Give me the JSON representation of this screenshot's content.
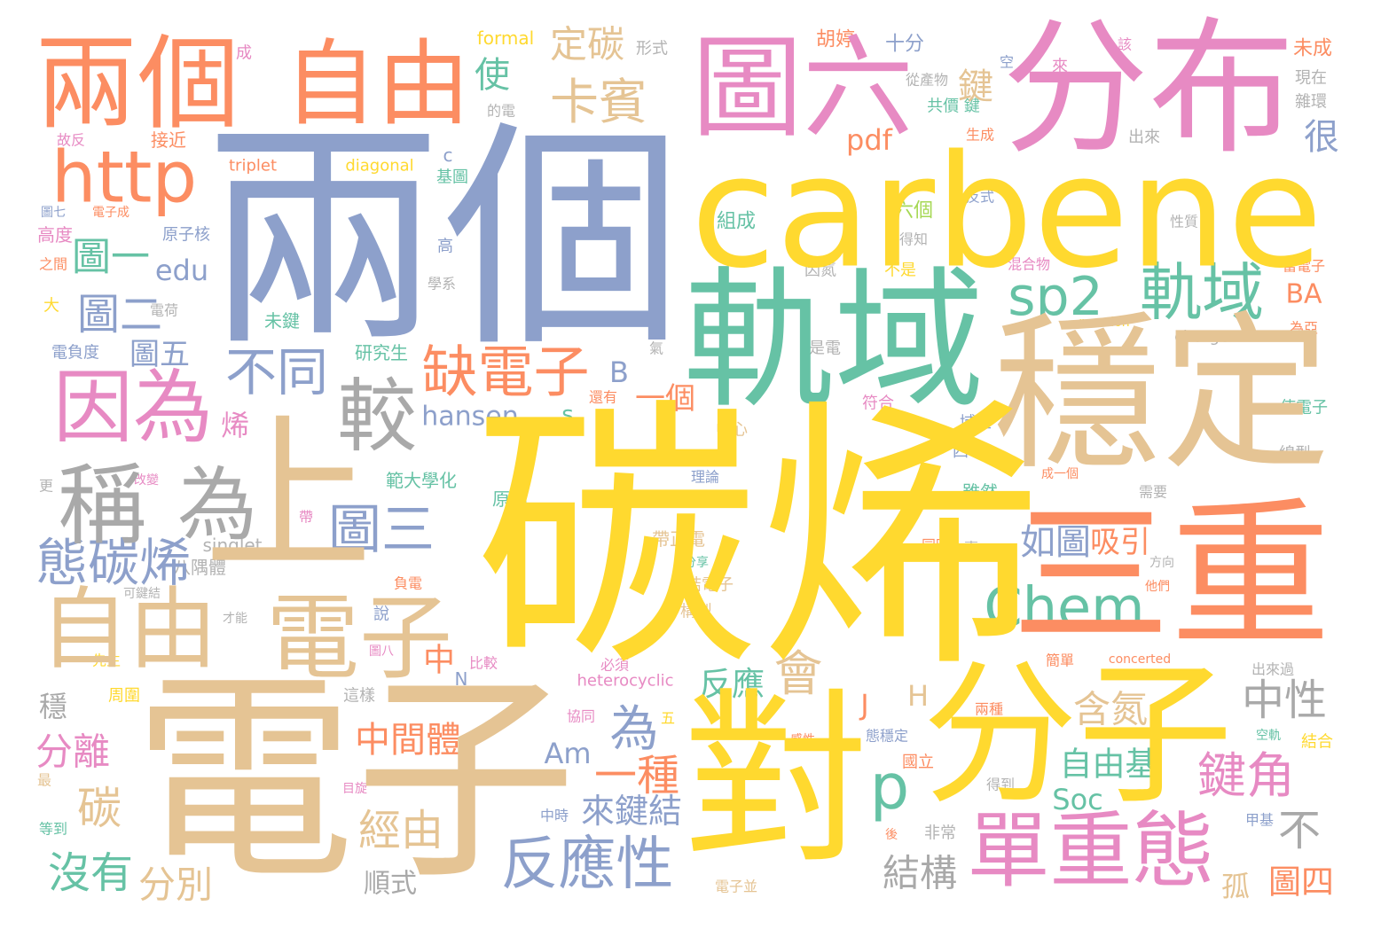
{
  "words": [
    {
      "text": "碳烯",
      "color": "#ffd92f"
    },
    {
      "text": "兩個",
      "color": "#8da0cb"
    },
    {
      "text": "電子",
      "color": "#e5c494"
    },
    {
      "text": "carbene",
      "color": "#ffd92f"
    },
    {
      "text": "分布",
      "color": "#e78ac3"
    },
    {
      "text": "圖六",
      "color": "#e78ac3"
    },
    {
      "text": "穩定",
      "color": "#e5c494"
    },
    {
      "text": "三重",
      "color": "#fc8d62"
    },
    {
      "text": "軌域",
      "color": "#66c2a5"
    },
    {
      "text": "分子",
      "color": "#ffd92f"
    },
    {
      "text": "對",
      "color": "#ffd92f"
    },
    {
      "text": "上",
      "color": "#e5c494"
    },
    {
      "text": "兩個",
      "color": "#fc8d62"
    },
    {
      "text": "自由",
      "color": "#fc8d62"
    },
    {
      "text": "http",
      "color": "#fc8d62"
    },
    {
      "text": "自由",
      "color": "#e5c494"
    },
    {
      "text": "因為",
      "color": "#e78ac3"
    },
    {
      "text": "稱",
      "color": "#a9a9a9"
    },
    {
      "text": "為",
      "color": "#a9a9a9"
    },
    {
      "text": "電子",
      "color": "#e5c494"
    },
    {
      "text": "單重態",
      "color": "#e78ac3"
    },
    {
      "text": "sp2",
      "color": "#66c2a5"
    },
    {
      "text": "軌域",
      "color": "#66c2a5"
    },
    {
      "text": "較",
      "color": "#a9a9a9"
    },
    {
      "text": "缺電子",
      "color": "#fc8d62"
    },
    {
      "text": "態碳烯",
      "color": "#8da0cb"
    },
    {
      "text": "圖三",
      "color": "#8da0cb"
    },
    {
      "text": "不同",
      "color": "#8da0cb"
    },
    {
      "text": "反應性",
      "color": "#8da0cb"
    },
    {
      "text": "Chem",
      "color": "#66c2a5"
    },
    {
      "text": "卡賓",
      "color": "#e5c494"
    },
    {
      "text": "定碳",
      "color": "#e5c494"
    },
    {
      "text": "中性",
      "color": "#a9a9a9"
    },
    {
      "text": "鍵角",
      "color": "#e78ac3"
    },
    {
      "text": "自由基",
      "color": "#66c2a5"
    },
    {
      "text": "含氮",
      "color": "#e5c494"
    },
    {
      "text": "中間體",
      "color": "#fc8d62"
    },
    {
      "text": "一種",
      "color": "#fc8d62"
    },
    {
      "text": "來鍵結",
      "color": "#8da0cb"
    },
    {
      "text": "經由",
      "color": "#e5c494"
    },
    {
      "text": "沒有",
      "color": "#66c2a5"
    },
    {
      "text": "分別",
      "color": "#e5c494"
    },
    {
      "text": "分離",
      "color": "#e78ac3"
    },
    {
      "text": "碳",
      "color": "#e5c494"
    },
    {
      "text": "穩",
      "color": "#a9a9a9"
    },
    {
      "text": "會",
      "color": "#e5c494"
    },
    {
      "text": "為",
      "color": "#8da0cb"
    },
    {
      "text": "p",
      "color": "#66c2a5"
    },
    {
      "text": "結構",
      "color": "#a9a9a9"
    },
    {
      "text": "不",
      "color": "#a9a9a9"
    },
    {
      "text": "孤",
      "color": "#e5c494"
    },
    {
      "text": "圖四",
      "color": "#fc8d62"
    },
    {
      "text": "如圖",
      "color": "#8da0cb"
    },
    {
      "text": "吸引",
      "color": "#fc8d62"
    },
    {
      "text": "反應",
      "color": "#66c2a5"
    },
    {
      "text": "hansen",
      "color": "#8da0cb"
    },
    {
      "text": "pdf",
      "color": "#fc8d62"
    },
    {
      "text": "edu",
      "color": "#8da0cb"
    },
    {
      "text": "圖一",
      "color": "#66c2a5"
    },
    {
      "text": "圖二",
      "color": "#8da0cb"
    },
    {
      "text": "鍵",
      "color": "#e5c494"
    },
    {
      "text": "使",
      "color": "#66c2a5"
    },
    {
      "text": "很",
      "color": "#8da0cb"
    },
    {
      "text": "BA",
      "color": "#fc8d62"
    },
    {
      "text": "圖五",
      "color": "#8da0cb"
    },
    {
      "text": "一個",
      "color": "#fc8d62"
    },
    {
      "text": "B",
      "color": "#8da0cb"
    },
    {
      "text": "s",
      "color": "#66c2a5"
    },
    {
      "text": "烯",
      "color": "#e78ac3"
    },
    {
      "text": "Am",
      "color": "#8da0cb"
    },
    {
      "text": "Soc",
      "color": "#66c2a5"
    },
    {
      "text": "J",
      "color": "#fc8d62"
    },
    {
      "text": "H",
      "color": "#e5c494"
    },
    {
      "text": "中",
      "color": "#fc8d62"
    },
    {
      "text": "N",
      "color": "#8da0cb"
    },
    {
      "text": "順式",
      "color": "#a9a9a9"
    },
    {
      "text": "formal",
      "color": "#ffd92f"
    },
    {
      "text": "triplet",
      "color": "#fc8d62"
    },
    {
      "text": "diagonal",
      "color": "#ffd92f"
    },
    {
      "text": "singlet",
      "color": "#b3b3b3"
    },
    {
      "text": "heterocyclic",
      "color": "#e78ac3"
    },
    {
      "text": "charge",
      "color": "#b3b3b3"
    },
    {
      "text": "reaction",
      "color": "#ffd92f"
    },
    {
      "text": "concerted",
      "color": "#fc8d62"
    },
    {
      "text": "研究生",
      "color": "#66c2a5"
    },
    {
      "text": "範大學化",
      "color": "#66c2a5"
    },
    {
      "text": "原因",
      "color": "#66c2a5"
    },
    {
      "text": "八隅體",
      "color": "#b3b3b3"
    },
    {
      "text": "帶正電",
      "color": "#e5c494"
    },
    {
      "text": "組成",
      "color": "#66c2a5"
    },
    {
      "text": "六個",
      "color": "#a6d854"
    },
    {
      "text": "胡婷",
      "color": "#fc8d62"
    },
    {
      "text": "十分",
      "color": "#8da0cb"
    },
    {
      "text": "未成",
      "color": "#fc8d62"
    },
    {
      "text": "現在",
      "color": "#b3b3b3"
    },
    {
      "text": "雜環",
      "color": "#b3b3b3"
    },
    {
      "text": "出來",
      "color": "#b3b3b3"
    },
    {
      "text": "共價 鍵",
      "color": "#66c2a5"
    },
    {
      "text": "高度",
      "color": "#e78ac3"
    },
    {
      "text": "大",
      "color": "#ffd92f"
    },
    {
      "text": "電負度",
      "color": "#8da0cb"
    },
    {
      "text": "原子核",
      "color": "#8da0cb"
    },
    {
      "text": "接近",
      "color": "#fc8d62"
    },
    {
      "text": "中心",
      "color": "#e5c494"
    },
    {
      "text": "理論",
      "color": "#8da0cb"
    },
    {
      "text": "雖然",
      "color": "#66c2a5"
    },
    {
      "text": "符合",
      "color": "#e78ac3"
    },
    {
      "text": "使電子",
      "color": "#66c2a5"
    },
    {
      "text": "線型",
      "color": "#b3b3b3"
    },
    {
      "text": "為亞",
      "color": "#fc8d62"
    },
    {
      "text": "當電子",
      "color": "#fc8d62"
    },
    {
      "text": "結合",
      "color": "#ffd92f"
    },
    {
      "text": "空軌",
      "color": "#66c2a5"
    },
    {
      "text": "出來過",
      "color": "#b3b3b3"
    },
    {
      "text": "得到",
      "color": "#b3b3b3"
    },
    {
      "text": "非常",
      "color": "#b3b3b3"
    },
    {
      "text": "國立",
      "color": "#fc8d62"
    },
    {
      "text": "中時",
      "color": "#8da0cb"
    },
    {
      "text": "構型",
      "color": "#e5c494"
    },
    {
      "text": "結電子",
      "color": "#e5c494"
    },
    {
      "text": "電子並",
      "color": "#e5c494"
    },
    {
      "text": "是電",
      "color": "#b3b3b3"
    },
    {
      "text": "因氮",
      "color": "#b3b3b3"
    },
    {
      "text": "不是",
      "color": "#ffd92f"
    },
    {
      "text": "得知",
      "color": "#b3b3b3"
    },
    {
      "text": "混合物",
      "color": "#e78ac3"
    },
    {
      "text": "反式",
      "color": "#8da0cb"
    },
    {
      "text": "性質",
      "color": "#b3b3b3"
    },
    {
      "text": "周圍",
      "color": "#ffd92f"
    },
    {
      "text": "先生",
      "color": "#ffd92f"
    },
    {
      "text": "最",
      "color": "#e5c494"
    },
    {
      "text": "等到",
      "color": "#66c2a5"
    },
    {
      "text": "更",
      "color": "#b3b3b3"
    },
    {
      "text": "電荷",
      "color": "#b3b3b3"
    },
    {
      "text": "之間",
      "color": "#fc8d62"
    },
    {
      "text": "未鍵",
      "color": "#66c2a5"
    },
    {
      "text": "學系",
      "color": "#b3b3b3"
    },
    {
      "text": "高",
      "color": "#8da0cb"
    },
    {
      "text": "基圖",
      "color": "#66c2a5"
    },
    {
      "text": "還有",
      "color": "#fc8d62"
    },
    {
      "text": "氣",
      "color": "#b3b3b3"
    },
    {
      "text": "形式",
      "color": "#b3b3b3"
    },
    {
      "text": "從產物",
      "color": "#b3b3b3"
    },
    {
      "text": "態穩定",
      "color": "#8da0cb"
    },
    {
      "text": "兩種",
      "color": "#fc8d62"
    },
    {
      "text": "簡單",
      "color": "#fc8d62"
    },
    {
      "text": "必須",
      "color": "#e78ac3"
    },
    {
      "text": "比較",
      "color": "#e78ac3"
    },
    {
      "text": "負電",
      "color": "#fc8d62"
    },
    {
      "text": "說",
      "color": "#8da0cb"
    },
    {
      "text": "這樣",
      "color": "#b3b3b3"
    },
    {
      "text": "協同",
      "color": "#e78ac3"
    },
    {
      "text": "五",
      "color": "#ffd92f"
    },
    {
      "text": "目旋",
      "color": "#e78ac3"
    },
    {
      "text": "感性",
      "color": "#fc8d62"
    },
    {
      "text": "域性",
      "color": "#8da0cb"
    },
    {
      "text": "四",
      "color": "#8da0cb"
    },
    {
      "text": "同時",
      "color": "#fc8d62"
    },
    {
      "text": "需要",
      "color": "#b3b3b3"
    },
    {
      "text": "嘉",
      "color": "#b3b3b3"
    },
    {
      "text": "方向",
      "color": "#b3b3b3"
    },
    {
      "text": "他們",
      "color": "#fc8d62"
    },
    {
      "text": "分享",
      "color": "#66c2a5"
    },
    {
      "text": "可鍵結",
      "color": "#b3b3b3"
    },
    {
      "text": "才能",
      "color": "#b3b3b3"
    },
    {
      "text": "圖八",
      "color": "#e78ac3"
    },
    {
      "text": "成一個",
      "color": "#fc8d62"
    },
    {
      "text": "生成",
      "color": "#fc8d62"
    },
    {
      "text": "甲基",
      "color": "#8da0cb"
    },
    {
      "text": "後",
      "color": "#fc8d62"
    },
    {
      "text": "空",
      "color": "#8da0cb"
    },
    {
      "text": "來",
      "color": "#e78ac3"
    },
    {
      "text": "該",
      "color": "#e78ac3"
    },
    {
      "text": "成",
      "color": "#e78ac3"
    },
    {
      "text": "故反",
      "color": "#e78ac3"
    },
    {
      "text": "的電",
      "color": "#b3b3b3"
    },
    {
      "text": "c",
      "color": "#8da0cb"
    },
    {
      "text": "電子成",
      "color": "#fc8d62"
    },
    {
      "text": "圖七",
      "color": "#8da0cb"
    },
    {
      "text": "改變",
      "color": "#e78ac3"
    },
    {
      "text": "帶",
      "color": "#e78ac3"
    }
  ]
}
